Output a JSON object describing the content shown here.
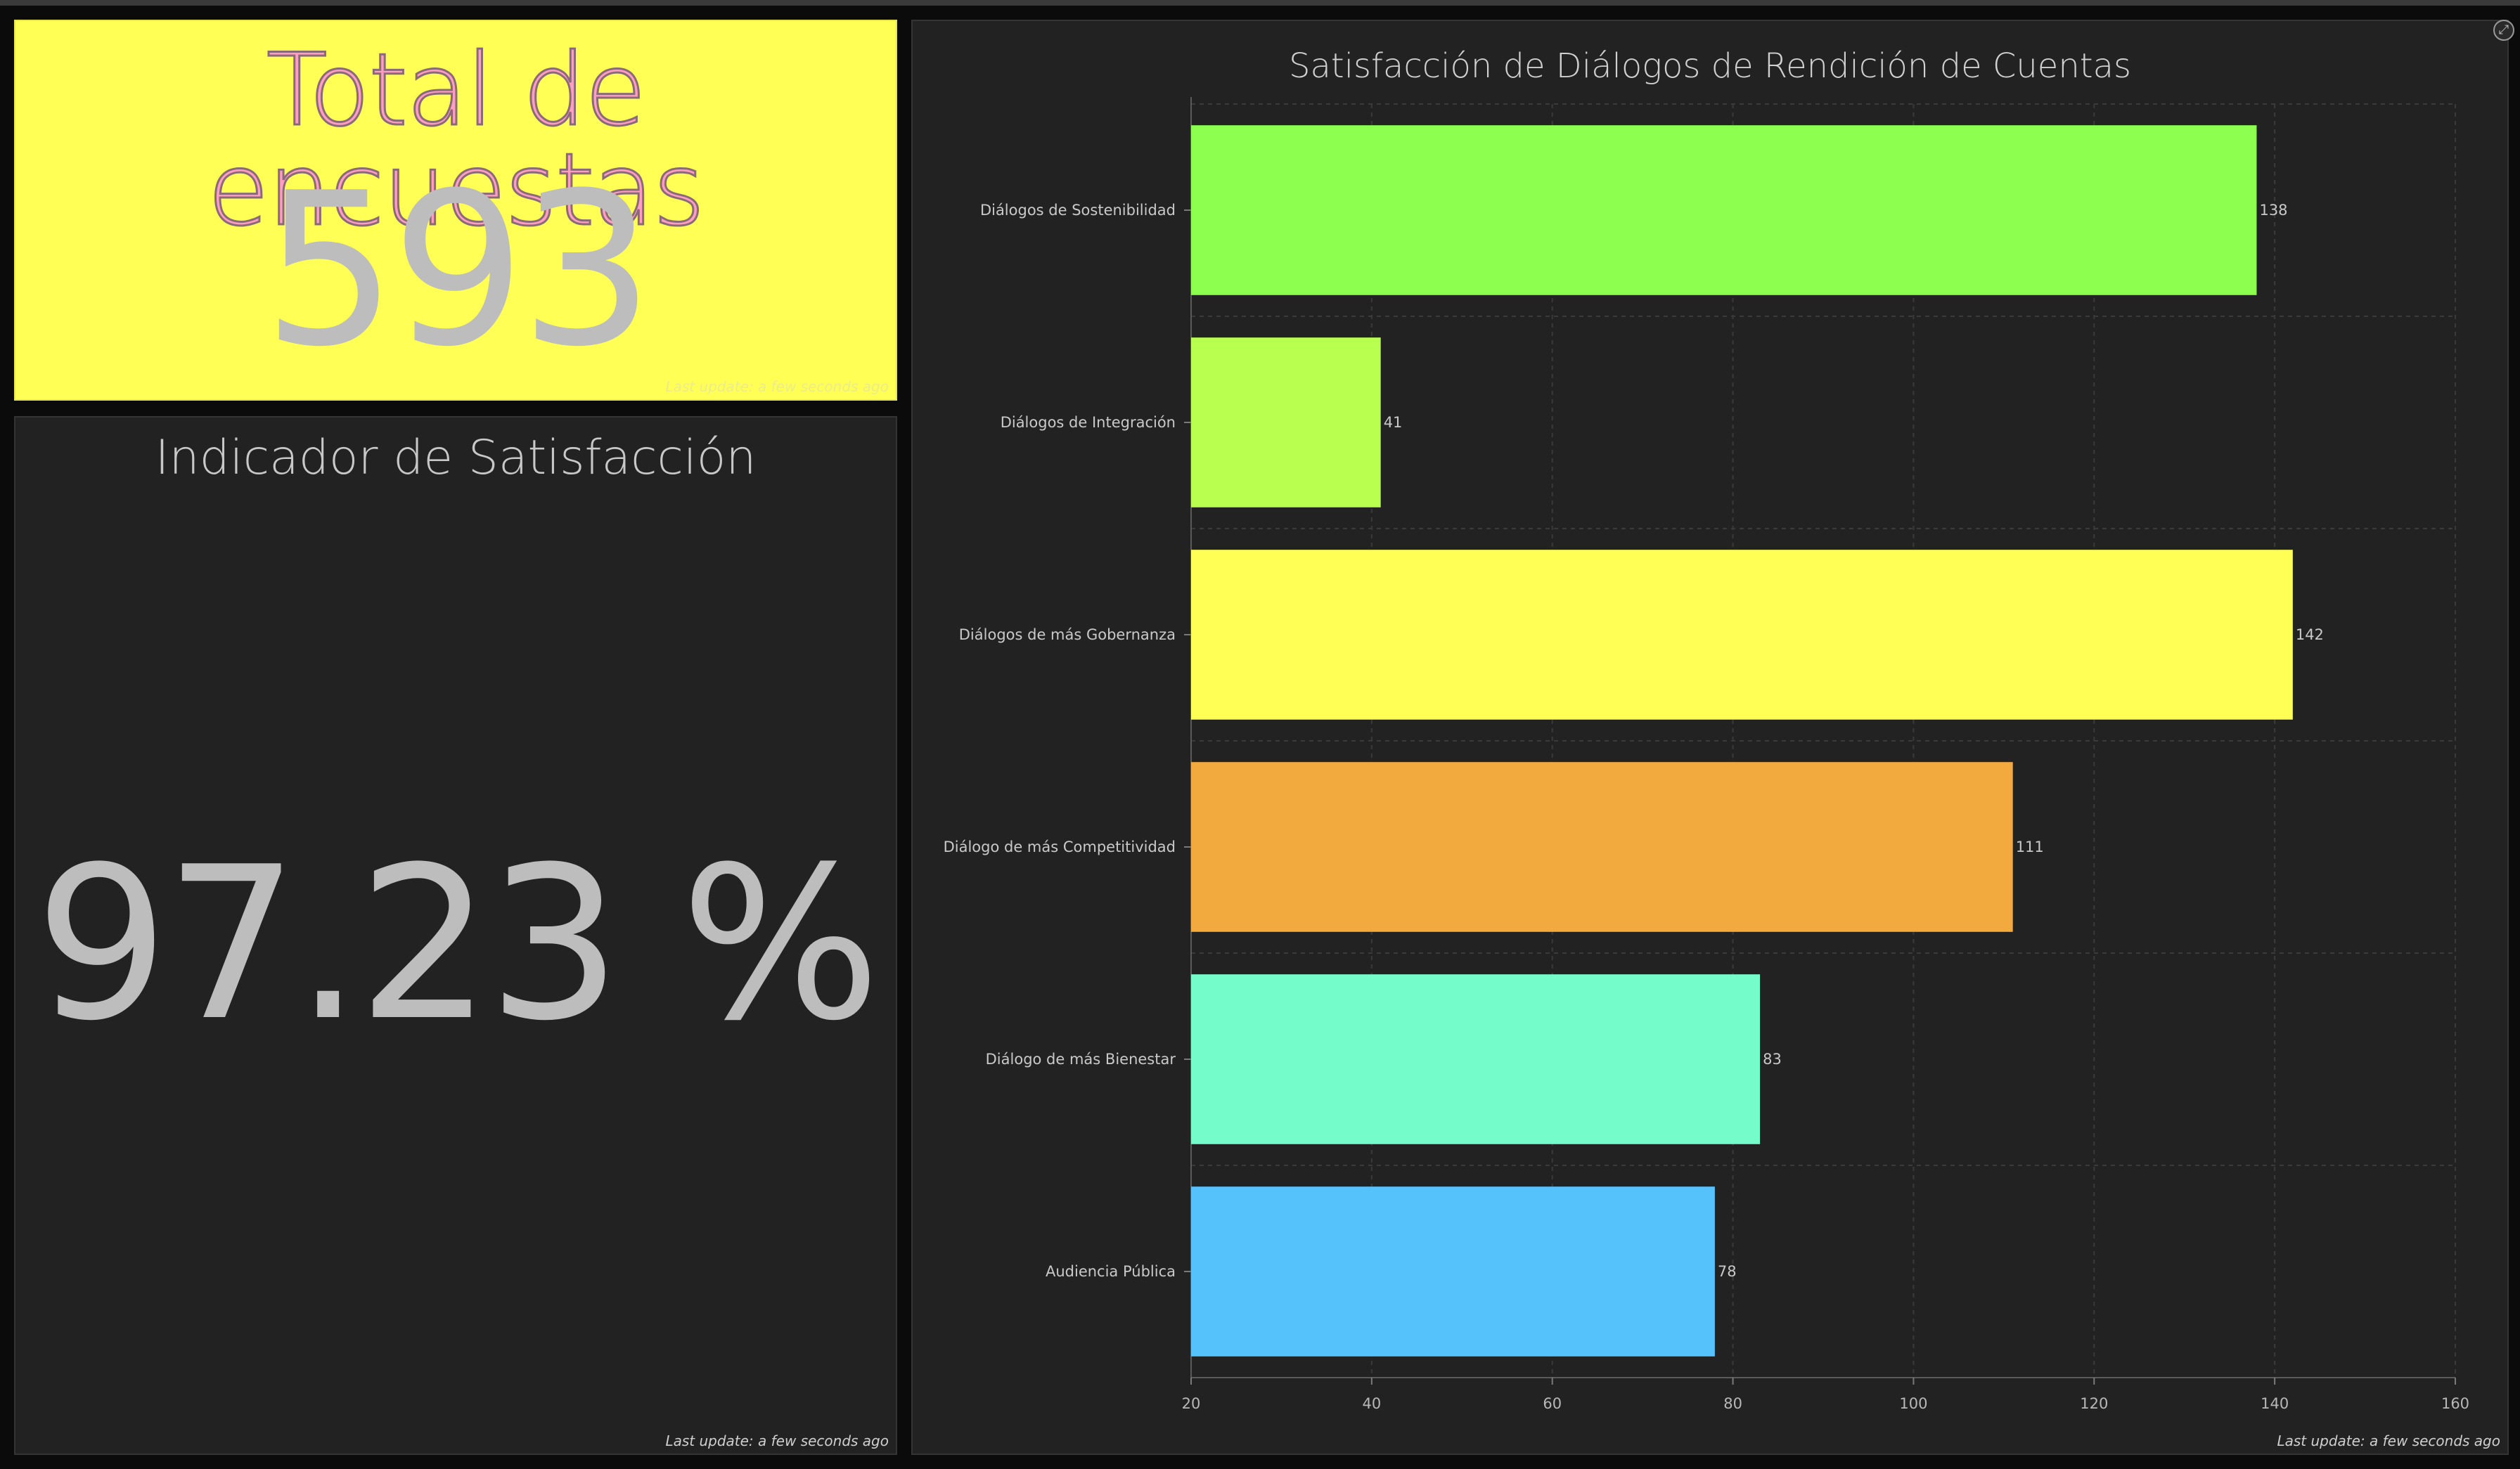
{
  "total_card": {
    "title": "Total de encuestas",
    "value": "593",
    "last_update": "Last update: a few seconds ago",
    "bg_color": "#ffff55"
  },
  "satisfaction_card": {
    "title": "Indicador de Satisfacción",
    "value": "97.23 %",
    "last_update": "Last update: a few seconds ago"
  },
  "chart_card": {
    "last_update": "Last update: a few seconds ago",
    "expand_icon": "expand-icon"
  },
  "chart_data": {
    "type": "bar",
    "orientation": "horizontal",
    "title": "Satisfacción de Diálogos de  Rendición de Cuentas",
    "categories": [
      "Diálogos de Sostenibilidad",
      "Diálogos de Integración",
      "Diálogos de más Gobernanza",
      "Diálogo de más Competitividad",
      "Diálogo de más Bienestar",
      "Audiencia Pública"
    ],
    "values": [
      138,
      41,
      142,
      111,
      83,
      78
    ],
    "colors": [
      "#8cff4f",
      "#b8ff4f",
      "#ffff55",
      "#f2a93e",
      "#74fccb",
      "#56c2fb"
    ],
    "xlim": [
      20,
      160
    ],
    "xticks": [
      20,
      40,
      60,
      80,
      100,
      120,
      140,
      160
    ],
    "grid": true,
    "legend": "none"
  }
}
